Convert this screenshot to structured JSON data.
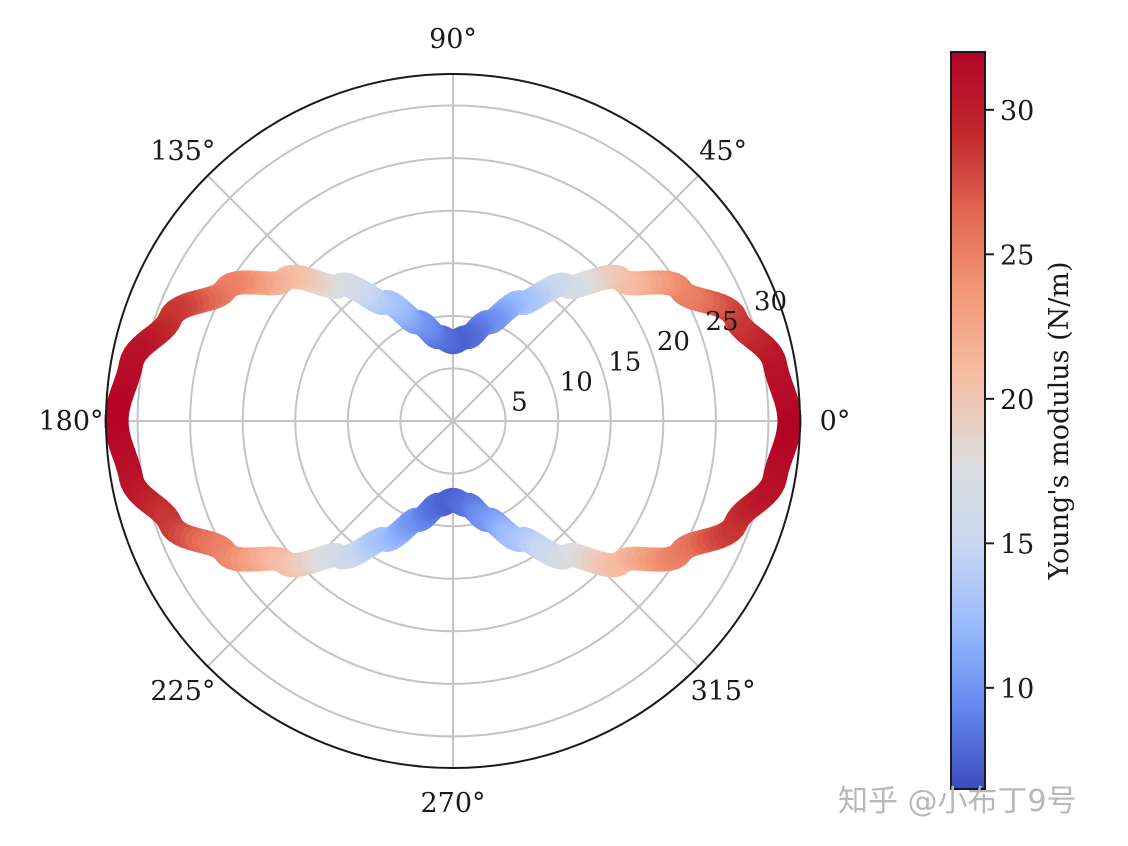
{
  "chart_data": {
    "type": "polar-colored-line",
    "title": "",
    "angular_ticks": [
      "0°",
      "45°",
      "90°",
      "135°",
      "180°",
      "225°",
      "270°",
      "315°"
    ],
    "radial_ticks": [
      5,
      10,
      15,
      20,
      25,
      30
    ],
    "rlim": [
      0,
      33
    ],
    "grid": true,
    "series": [
      {
        "theta_deg": [
          0,
          10,
          20,
          30,
          40,
          50,
          60,
          70,
          80,
          90,
          100,
          110,
          120,
          130,
          140,
          150,
          160,
          170,
          180,
          190,
          200,
          210,
          220,
          230,
          240,
          250,
          260,
          270,
          280,
          290,
          300,
          310,
          320,
          330,
          340,
          350,
          360
        ],
        "r": [
          32,
          31.1,
          28.6,
          25.0,
          20.9,
          16.8,
          13.0,
          10.0,
          8.1,
          7.5,
          8.1,
          10.0,
          13.0,
          16.8,
          20.9,
          25.0,
          28.6,
          31.1,
          32,
          31.1,
          28.6,
          25.0,
          20.9,
          16.8,
          13.0,
          10.0,
          8.1,
          7.5,
          8.1,
          10.0,
          13.0,
          16.8,
          20.9,
          25.0,
          28.6,
          31.1,
          32
        ]
      }
    ],
    "colorbar": {
      "label": "Young's modulus (N/m)",
      "ticks": [
        10,
        15,
        20,
        25,
        30
      ],
      "vmin": 6.5,
      "vmax": 32,
      "colormap": "coolwarm",
      "colors": [
        "#3b4cc0",
        "#6788ee",
        "#9abbff",
        "#c9d7f0",
        "#dddddd",
        "#f6bfa6",
        "#f49a7b",
        "#e36a53",
        "#c0282d",
        "#b40426"
      ]
    }
  },
  "watermark": "知乎 @小布丁9号"
}
